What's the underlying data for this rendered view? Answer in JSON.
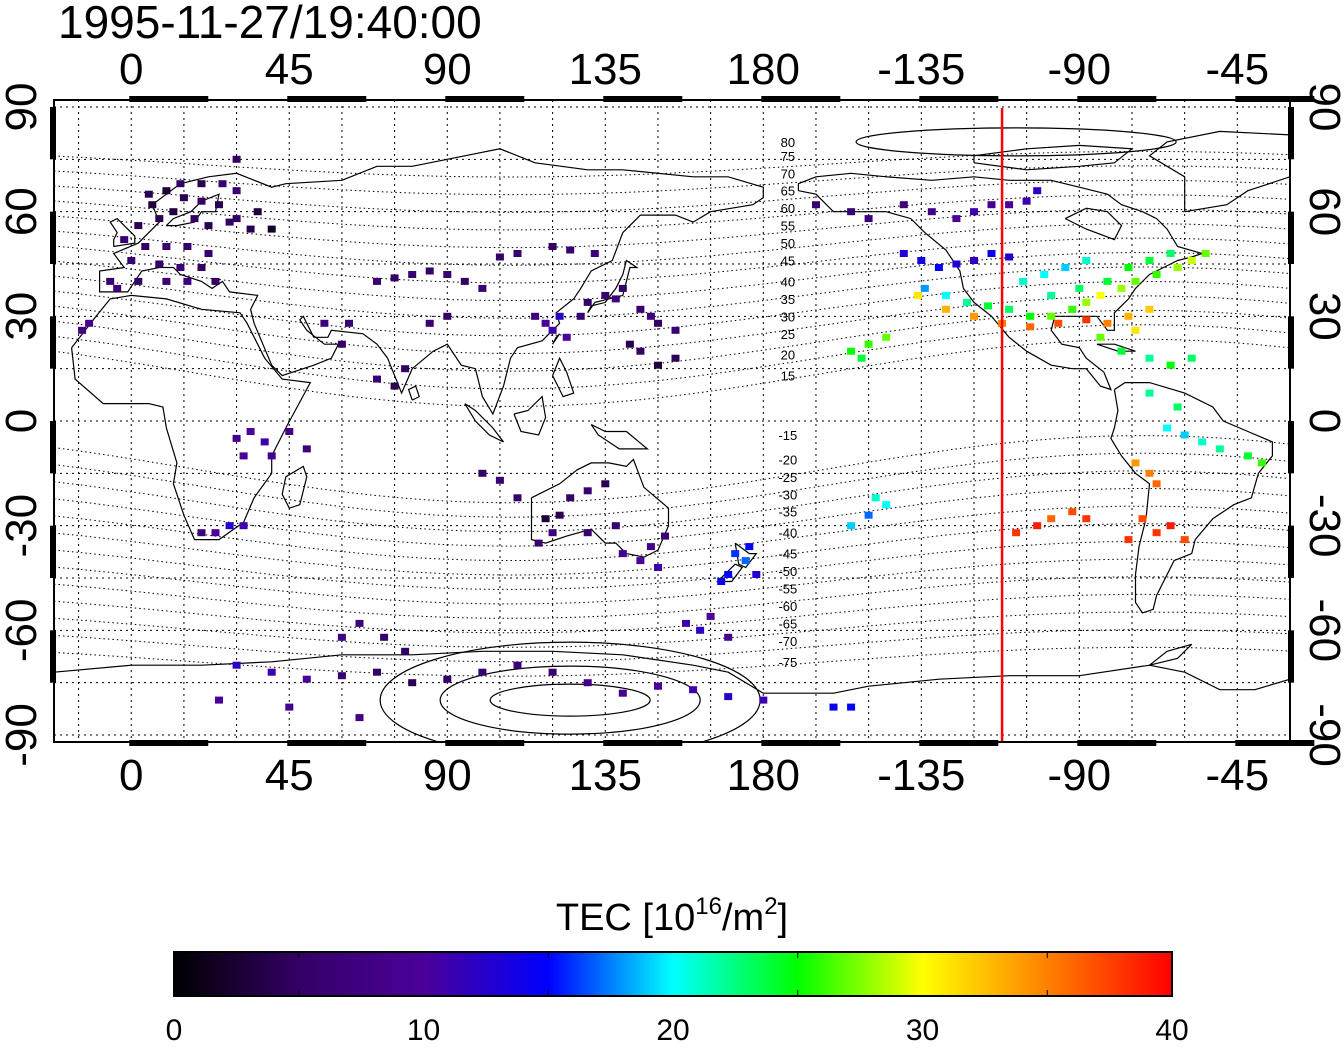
{
  "title": "1995-11-27/19:40:00",
  "x_ticks": [
    "0",
    "45",
    "90",
    "135",
    "180",
    "-135",
    "-90",
    "-45"
  ],
  "x_tick_lons": [
    0,
    45,
    90,
    135,
    180,
    225,
    270,
    315
  ],
  "y_ticks": [
    "90",
    "60",
    "30",
    "0",
    "-30",
    "-60",
    "-90"
  ],
  "y_tick_lats": [
    90,
    60,
    30,
    0,
    -30,
    -60,
    -90
  ],
  "map_extent": {
    "lon_min": -22,
    "lon_max": 330,
    "lat_min": -92,
    "lat_max": 92
  },
  "magnetic_latitude_labels": [
    "80",
    "75",
    "70",
    "65",
    "60",
    "55",
    "50",
    "45",
    "40",
    "35",
    "30",
    "25",
    "20",
    "15",
    "-15",
    "-20",
    "-25",
    "-30",
    "-35",
    "-40",
    "-45",
    "-50",
    "-55",
    "-60",
    "-65",
    "-70",
    "-75"
  ],
  "magnetic_latitude_label_lats": [
    80,
    76,
    71,
    66,
    61,
    56,
    51,
    46,
    40,
    35,
    30,
    25,
    19,
    13,
    -4,
    -11,
    -16,
    -21,
    -26,
    -32,
    -38,
    -43,
    -48,
    -53,
    -58,
    -63,
    -69
  ],
  "terminator_lon": 248,
  "terminator_color": "#ff0000",
  "colorbar": {
    "title": "TEC  [10",
    "title_sup": "16",
    "title_mid": "/m",
    "title_sup2": "2",
    "title_end": "]",
    "ticks": [
      "0",
      "10",
      "20",
      "30",
      "40"
    ],
    "range": [
      0,
      40
    ],
    "stops": [
      "#000000",
      "#330066",
      "#4b0099",
      "#0000ff",
      "#00ffff",
      "#00ff00",
      "#ffff00",
      "#ff8000",
      "#ff0000"
    ]
  },
  "tec_points": [
    [
      5,
      65,
      4
    ],
    [
      10,
      66,
      3
    ],
    [
      15,
      64,
      4
    ],
    [
      20,
      63,
      5
    ],
    [
      25,
      62,
      4
    ],
    [
      12,
      60,
      3
    ],
    [
      8,
      58,
      4
    ],
    [
      18,
      58,
      5
    ],
    [
      22,
      56,
      4
    ],
    [
      28,
      57,
      5
    ],
    [
      30,
      66,
      6
    ],
    [
      14,
      68,
      5
    ],
    [
      20,
      68,
      4
    ],
    [
      26,
      68,
      6
    ],
    [
      6,
      62,
      3
    ],
    [
      2,
      56,
      4
    ],
    [
      -2,
      52,
      6
    ],
    [
      4,
      50,
      5
    ],
    [
      10,
      50,
      6
    ],
    [
      16,
      50,
      5
    ],
    [
      22,
      48,
      6
    ],
    [
      0,
      46,
      6
    ],
    [
      8,
      45,
      5
    ],
    [
      14,
      44,
      6
    ],
    [
      20,
      44,
      5
    ],
    [
      -6,
      40,
      6
    ],
    [
      2,
      40,
      5
    ],
    [
      10,
      40,
      6
    ],
    [
      16,
      40,
      7
    ],
    [
      24,
      40,
      5
    ],
    [
      -4,
      38,
      7
    ],
    [
      30,
      58,
      5
    ],
    [
      34,
      55,
      4
    ],
    [
      36,
      60,
      3
    ],
    [
      -12,
      28,
      9
    ],
    [
      -14,
      26,
      8
    ],
    [
      30,
      75,
      5
    ],
    [
      40,
      55,
      2
    ],
    [
      70,
      40,
      6
    ],
    [
      75,
      41,
      5
    ],
    [
      80,
      42,
      6
    ],
    [
      85,
      43,
      5
    ],
    [
      90,
      42,
      6
    ],
    [
      95,
      40,
      5
    ],
    [
      100,
      38,
      6
    ],
    [
      105,
      47,
      5
    ],
    [
      110,
      48,
      6
    ],
    [
      120,
      50,
      5
    ],
    [
      125,
      49,
      6
    ],
    [
      132,
      48,
      7
    ],
    [
      115,
      30,
      7
    ],
    [
      118,
      28,
      10
    ],
    [
      120,
      26,
      11
    ],
    [
      122,
      30,
      12
    ],
    [
      124,
      24,
      10
    ],
    [
      128,
      30,
      6
    ],
    [
      130,
      34,
      5
    ],
    [
      135,
      36,
      6
    ],
    [
      138,
      35,
      7
    ],
    [
      140,
      38,
      5
    ],
    [
      145,
      32,
      6
    ],
    [
      148,
      30,
      7
    ],
    [
      150,
      28,
      5
    ],
    [
      155,
      26,
      6
    ],
    [
      142,
      22,
      4
    ],
    [
      145,
      20,
      5
    ],
    [
      150,
      16,
      3
    ],
    [
      155,
      18,
      4
    ],
    [
      85,
      28,
      6
    ],
    [
      90,
      30,
      5
    ],
    [
      75,
      10,
      4
    ],
    [
      78,
      15,
      5
    ],
    [
      70,
      12,
      6
    ],
    [
      60,
      22,
      5
    ],
    [
      62,
      28,
      6
    ],
    [
      55,
      28,
      7
    ],
    [
      30,
      -5,
      9
    ],
    [
      34,
      -3,
      10
    ],
    [
      38,
      -6,
      11
    ],
    [
      40,
      -10,
      9
    ],
    [
      45,
      -3,
      8
    ],
    [
      50,
      -8,
      7
    ],
    [
      32,
      -10,
      10
    ],
    [
      20,
      -32,
      7
    ],
    [
      24,
      -32,
      10
    ],
    [
      28,
      -30,
      13
    ],
    [
      32,
      -30,
      11
    ],
    [
      100,
      -15,
      5
    ],
    [
      105,
      -17,
      6
    ],
    [
      110,
      -22,
      5
    ],
    [
      118,
      -28,
      3
    ],
    [
      122,
      -27,
      4
    ],
    [
      125,
      -22,
      5
    ],
    [
      130,
      -20,
      6
    ],
    [
      135,
      -18,
      4
    ],
    [
      138,
      -30,
      6
    ],
    [
      130,
      -32,
      6
    ],
    [
      120,
      -32,
      7
    ],
    [
      116,
      -35,
      6
    ],
    [
      140,
      -38,
      9
    ],
    [
      145,
      -40,
      10
    ],
    [
      150,
      -42,
      11
    ],
    [
      148,
      -36,
      8
    ],
    [
      152,
      -33,
      6
    ],
    [
      172,
      -38,
      16
    ],
    [
      175,
      -40,
      17
    ],
    [
      170,
      -44,
      15
    ],
    [
      168,
      -46,
      14
    ],
    [
      176,
      -36,
      15
    ],
    [
      178,
      -44,
      13
    ],
    [
      158,
      -58,
      11
    ],
    [
      162,
      -60,
      12
    ],
    [
      165,
      -56,
      10
    ],
    [
      170,
      -62,
      9
    ],
    [
      65,
      -58,
      7
    ],
    [
      72,
      -62,
      6
    ],
    [
      60,
      -62,
      8
    ],
    [
      78,
      -66,
      5
    ],
    [
      30,
      -70,
      12
    ],
    [
      40,
      -72,
      11
    ],
    [
      50,
      -74,
      10
    ],
    [
      60,
      -73,
      6
    ],
    [
      70,
      -72,
      5
    ],
    [
      80,
      -75,
      4
    ],
    [
      90,
      -74,
      5
    ],
    [
      100,
      -72,
      6
    ],
    [
      110,
      -70,
      7
    ],
    [
      120,
      -72,
      6
    ],
    [
      130,
      -75,
      8
    ],
    [
      140,
      -78,
      9
    ],
    [
      150,
      -76,
      10
    ],
    [
      160,
      -77,
      11
    ],
    [
      170,
      -79,
      12
    ],
    [
      180,
      -80,
      11
    ],
    [
      200,
      -82,
      14
    ],
    [
      205,
      -82,
      15
    ],
    [
      25,
      -80,
      10
    ],
    [
      45,
      -82,
      9
    ],
    [
      65,
      -85,
      8
    ],
    [
      195,
      62,
      6
    ],
    [
      205,
      60,
      6
    ],
    [
      210,
      58,
      7
    ],
    [
      220,
      62,
      7
    ],
    [
      228,
      60,
      8
    ],
    [
      235,
      58,
      10
    ],
    [
      240,
      60,
      11
    ],
    [
      245,
      62,
      9
    ],
    [
      250,
      62,
      10
    ],
    [
      255,
      63,
      11
    ],
    [
      258,
      66,
      12
    ],
    [
      220,
      48,
      13
    ],
    [
      225,
      46,
      14
    ],
    [
      230,
      44,
      15
    ],
    [
      235,
      45,
      13
    ],
    [
      240,
      46,
      12
    ],
    [
      245,
      48,
      14
    ],
    [
      250,
      47,
      13
    ],
    [
      226,
      38,
      18
    ],
    [
      232,
      36,
      20
    ],
    [
      238,
      34,
      22
    ],
    [
      244,
      33,
      24
    ],
    [
      250,
      32,
      23
    ],
    [
      256,
      30,
      25
    ],
    [
      262,
      30,
      27
    ],
    [
      268,
      32,
      26
    ],
    [
      272,
      34,
      28
    ],
    [
      276,
      36,
      30
    ],
    [
      282,
      38,
      28
    ],
    [
      286,
      40,
      27
    ],
    [
      292,
      42,
      26
    ],
    [
      298,
      44,
      28
    ],
    [
      302,
      46,
      29
    ],
    [
      306,
      48,
      27
    ],
    [
      262,
      36,
      22
    ],
    [
      270,
      38,
      23
    ],
    [
      278,
      40,
      24
    ],
    [
      284,
      44,
      25
    ],
    [
      290,
      46,
      24
    ],
    [
      296,
      48,
      23
    ],
    [
      254,
      40,
      21
    ],
    [
      260,
      42,
      20
    ],
    [
      266,
      44,
      19
    ],
    [
      272,
      46,
      21
    ],
    [
      224,
      36,
      31
    ],
    [
      232,
      32,
      33
    ],
    [
      240,
      30,
      34
    ],
    [
      248,
      28,
      35
    ],
    [
      256,
      27,
      36
    ],
    [
      264,
      28,
      37
    ],
    [
      272,
      29,
      38
    ],
    [
      278,
      28,
      35
    ],
    [
      284,
      30,
      33
    ],
    [
      290,
      32,
      32
    ],
    [
      286,
      26,
      31
    ],
    [
      276,
      24,
      27
    ],
    [
      282,
      20,
      24
    ],
    [
      290,
      18,
      22
    ],
    [
      296,
      16,
      25
    ],
    [
      302,
      18,
      23
    ],
    [
      205,
      20,
      25
    ],
    [
      208,
      18,
      24
    ],
    [
      210,
      22,
      26
    ],
    [
      215,
      24,
      27
    ],
    [
      212,
      -22,
      21
    ],
    [
      215,
      -24,
      20
    ],
    [
      210,
      -27,
      17
    ],
    [
      205,
      -30,
      19
    ],
    [
      262,
      -28,
      36
    ],
    [
      268,
      -26,
      37
    ],
    [
      272,
      -28,
      38
    ],
    [
      258,
      -30,
      39
    ],
    [
      252,
      -32,
      38
    ],
    [
      286,
      -12,
      34
    ],
    [
      290,
      -15,
      35
    ],
    [
      292,
      -18,
      36
    ],
    [
      288,
      -28,
      37
    ],
    [
      292,
      -32,
      38
    ],
    [
      296,
      -30,
      39
    ],
    [
      300,
      -34,
      37
    ],
    [
      284,
      -34,
      38
    ],
    [
      295,
      -2,
      20
    ],
    [
      300,
      -4,
      19
    ],
    [
      305,
      -6,
      21
    ],
    [
      310,
      -8,
      22
    ],
    [
      318,
      -10,
      24
    ],
    [
      322,
      -12,
      26
    ],
    [
      298,
      4,
      23
    ],
    [
      290,
      8,
      22
    ]
  ]
}
